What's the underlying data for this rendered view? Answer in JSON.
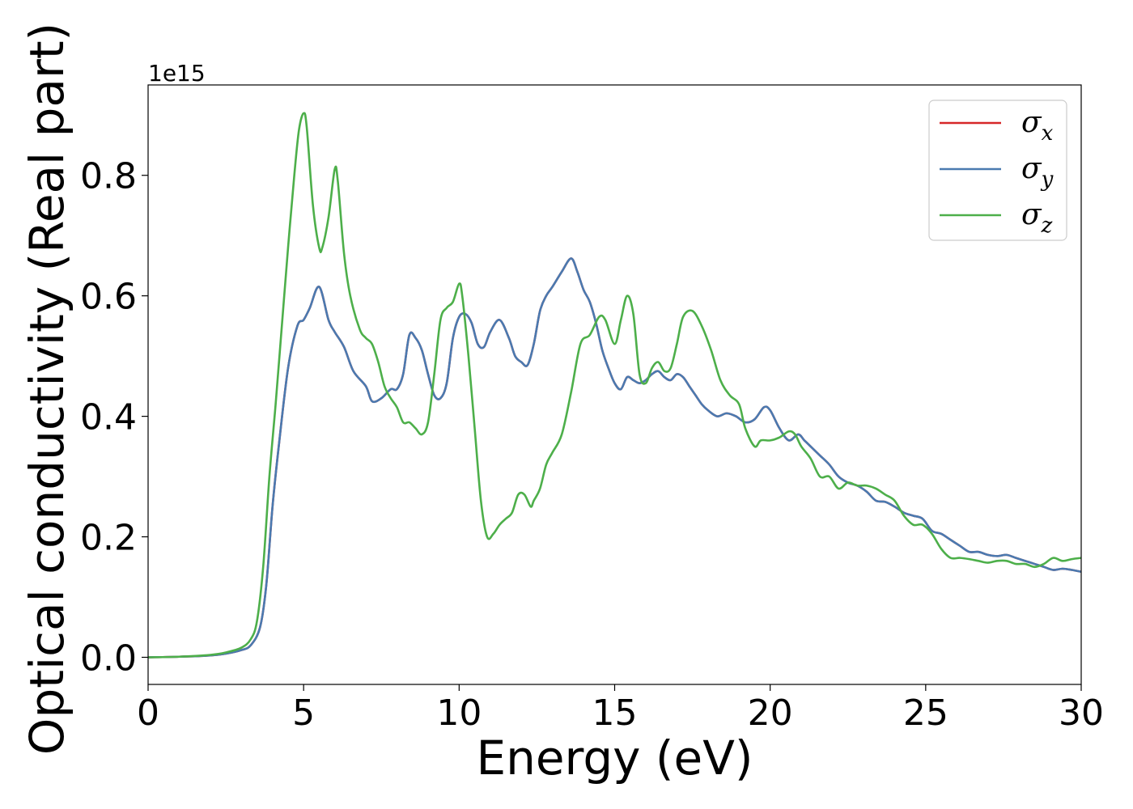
{
  "chart_data": {
    "type": "line",
    "xlabel": "Energy (eV)",
    "ylabel": "Optical conductivity (Real part)",
    "y_offset_label": "1e15",
    "xlim": [
      0,
      30
    ],
    "ylim": [
      -0.045,
      0.95
    ],
    "xticks": [
      0,
      5,
      10,
      15,
      20,
      25,
      30
    ],
    "xtick_labels": [
      "0",
      "5",
      "10",
      "15",
      "20",
      "25",
      "30"
    ],
    "yticks": [
      0.0,
      0.2,
      0.4,
      0.6,
      0.8
    ],
    "ytick_labels": [
      "0.0",
      "0.2",
      "0.4",
      "0.6",
      "0.8"
    ],
    "grid": false,
    "legend_position": "top-right",
    "series": [
      {
        "name": "σx",
        "symbol": "σ",
        "subscript": "x",
        "color": "#d62728",
        "x": [
          0,
          1,
          2,
          2.5,
          3,
          3.3,
          3.6,
          3.8,
          4.0,
          4.2,
          4.5,
          4.8,
          5.0,
          5.2,
          5.5,
          5.8,
          6.0,
          6.3,
          6.6,
          7.0,
          7.2,
          7.5,
          7.8,
          8.0,
          8.2,
          8.4,
          8.6,
          8.8,
          9.0,
          9.2,
          9.4,
          9.6,
          9.8,
          10.0,
          10.2,
          10.4,
          10.6,
          10.8,
          11.0,
          11.3,
          11.6,
          11.8,
          12.0,
          12.2,
          12.4,
          12.6,
          12.8,
          13.0,
          13.3,
          13.6,
          13.8,
          14.0,
          14.2,
          14.4,
          14.6,
          14.8,
          15.0,
          15.2,
          15.4,
          15.6,
          15.8,
          16.0,
          16.2,
          16.4,
          16.6,
          16.8,
          17.0,
          17.2,
          17.4,
          17.6,
          17.8,
          18.0,
          18.3,
          18.6,
          18.9,
          19.2,
          19.5,
          19.8,
          20.0,
          20.3,
          20.6,
          20.9,
          21.1,
          21.3,
          21.6,
          21.9,
          22.2,
          22.5,
          22.8,
          23.1,
          23.4,
          23.7,
          24.0,
          24.3,
          24.6,
          24.9,
          25.2,
          25.5,
          25.8,
          26.1,
          26.4,
          26.7,
          27.0,
          27.3,
          27.6,
          27.9,
          28.2,
          28.5,
          28.8,
          29.1,
          29.4,
          29.7,
          30.0
        ],
        "values": [
          0.0,
          0.001,
          0.003,
          0.006,
          0.012,
          0.02,
          0.05,
          0.12,
          0.25,
          0.35,
          0.48,
          0.55,
          0.56,
          0.58,
          0.615,
          0.56,
          0.54,
          0.515,
          0.475,
          0.45,
          0.425,
          0.43,
          0.445,
          0.445,
          0.47,
          0.535,
          0.53,
          0.51,
          0.47,
          0.435,
          0.43,
          0.455,
          0.53,
          0.565,
          0.57,
          0.555,
          0.52,
          0.515,
          0.54,
          0.56,
          0.53,
          0.5,
          0.49,
          0.485,
          0.52,
          0.575,
          0.6,
          0.615,
          0.64,
          0.662,
          0.64,
          0.61,
          0.59,
          0.555,
          0.51,
          0.48,
          0.455,
          0.445,
          0.465,
          0.46,
          0.455,
          0.46,
          0.47,
          0.475,
          0.465,
          0.46,
          0.47,
          0.465,
          0.45,
          0.435,
          0.42,
          0.41,
          0.4,
          0.405,
          0.4,
          0.39,
          0.395,
          0.415,
          0.41,
          0.38,
          0.36,
          0.37,
          0.36,
          0.35,
          0.335,
          0.32,
          0.3,
          0.29,
          0.285,
          0.275,
          0.26,
          0.258,
          0.25,
          0.24,
          0.235,
          0.23,
          0.21,
          0.205,
          0.195,
          0.185,
          0.175,
          0.175,
          0.17,
          0.168,
          0.17,
          0.165,
          0.16,
          0.155,
          0.15,
          0.145,
          0.147,
          0.145,
          0.142
        ]
      },
      {
        "name": "σy",
        "symbol": "σ",
        "subscript": "y",
        "color": "#4a7ab0",
        "x": [
          0,
          1,
          2,
          2.5,
          3,
          3.3,
          3.6,
          3.8,
          4.0,
          4.2,
          4.5,
          4.8,
          5.0,
          5.2,
          5.5,
          5.8,
          6.0,
          6.3,
          6.6,
          7.0,
          7.2,
          7.5,
          7.8,
          8.0,
          8.2,
          8.4,
          8.6,
          8.8,
          9.0,
          9.2,
          9.4,
          9.6,
          9.8,
          10.0,
          10.2,
          10.4,
          10.6,
          10.8,
          11.0,
          11.3,
          11.6,
          11.8,
          12.0,
          12.2,
          12.4,
          12.6,
          12.8,
          13.0,
          13.3,
          13.6,
          13.8,
          14.0,
          14.2,
          14.4,
          14.6,
          14.8,
          15.0,
          15.2,
          15.4,
          15.6,
          15.8,
          16.0,
          16.2,
          16.4,
          16.6,
          16.8,
          17.0,
          17.2,
          17.4,
          17.6,
          17.8,
          18.0,
          18.3,
          18.6,
          18.9,
          19.2,
          19.5,
          19.8,
          20.0,
          20.3,
          20.6,
          20.9,
          21.1,
          21.3,
          21.6,
          21.9,
          22.2,
          22.5,
          22.8,
          23.1,
          23.4,
          23.7,
          24.0,
          24.3,
          24.6,
          24.9,
          25.2,
          25.5,
          25.8,
          26.1,
          26.4,
          26.7,
          27.0,
          27.3,
          27.6,
          27.9,
          28.2,
          28.5,
          28.8,
          29.1,
          29.4,
          29.7,
          30.0
        ],
        "values": [
          0.0,
          0.001,
          0.003,
          0.006,
          0.012,
          0.02,
          0.05,
          0.12,
          0.25,
          0.35,
          0.48,
          0.55,
          0.56,
          0.58,
          0.615,
          0.56,
          0.54,
          0.515,
          0.475,
          0.45,
          0.425,
          0.43,
          0.445,
          0.445,
          0.47,
          0.535,
          0.53,
          0.51,
          0.47,
          0.435,
          0.43,
          0.455,
          0.53,
          0.565,
          0.57,
          0.555,
          0.52,
          0.515,
          0.54,
          0.56,
          0.53,
          0.5,
          0.49,
          0.485,
          0.52,
          0.575,
          0.6,
          0.615,
          0.64,
          0.662,
          0.64,
          0.61,
          0.59,
          0.555,
          0.51,
          0.48,
          0.455,
          0.445,
          0.465,
          0.46,
          0.455,
          0.46,
          0.47,
          0.475,
          0.465,
          0.46,
          0.47,
          0.465,
          0.45,
          0.435,
          0.42,
          0.41,
          0.4,
          0.405,
          0.4,
          0.39,
          0.395,
          0.415,
          0.41,
          0.38,
          0.36,
          0.37,
          0.36,
          0.35,
          0.335,
          0.32,
          0.3,
          0.29,
          0.285,
          0.275,
          0.26,
          0.258,
          0.25,
          0.24,
          0.235,
          0.23,
          0.21,
          0.205,
          0.195,
          0.185,
          0.175,
          0.175,
          0.17,
          0.168,
          0.17,
          0.165,
          0.16,
          0.155,
          0.15,
          0.145,
          0.147,
          0.145,
          0.142
        ]
      },
      {
        "name": "σz",
        "symbol": "σ",
        "subscript": "z",
        "color": "#4daf4a",
        "x": [
          0,
          1,
          2,
          2.5,
          3,
          3.3,
          3.5,
          3.7,
          3.9,
          4.1,
          4.3,
          4.5,
          4.7,
          4.85,
          5.0,
          5.1,
          5.3,
          5.5,
          5.6,
          5.8,
          6.0,
          6.1,
          6.3,
          6.5,
          6.8,
          7.0,
          7.2,
          7.4,
          7.6,
          7.8,
          8.0,
          8.2,
          8.4,
          8.6,
          8.8,
          9.0,
          9.2,
          9.4,
          9.6,
          9.8,
          10.0,
          10.1,
          10.3,
          10.5,
          10.7,
          10.9,
          11.1,
          11.3,
          11.5,
          11.7,
          11.9,
          12.1,
          12.3,
          12.4,
          12.6,
          12.8,
          13.0,
          13.3,
          13.6,
          13.9,
          14.2,
          14.5,
          14.7,
          15.0,
          15.2,
          15.4,
          15.6,
          15.8,
          16.0,
          16.2,
          16.4,
          16.6,
          16.8,
          17.0,
          17.2,
          17.5,
          17.8,
          18.1,
          18.4,
          18.7,
          19.0,
          19.2,
          19.5,
          19.7,
          20.0,
          20.3,
          20.6,
          20.8,
          21.0,
          21.3,
          21.6,
          21.9,
          22.2,
          22.5,
          22.8,
          23.1,
          23.4,
          23.7,
          24.0,
          24.3,
          24.6,
          24.9,
          25.2,
          25.5,
          25.8,
          26.1,
          26.4,
          26.7,
          27.0,
          27.3,
          27.6,
          27.9,
          28.2,
          28.5,
          28.8,
          29.1,
          29.4,
          29.7,
          30.0
        ],
        "values": [
          0.0,
          0.001,
          0.004,
          0.008,
          0.016,
          0.03,
          0.06,
          0.15,
          0.3,
          0.42,
          0.55,
          0.68,
          0.8,
          0.875,
          0.903,
          0.88,
          0.75,
          0.68,
          0.68,
          0.73,
          0.81,
          0.79,
          0.67,
          0.6,
          0.545,
          0.53,
          0.52,
          0.49,
          0.45,
          0.43,
          0.415,
          0.39,
          0.39,
          0.38,
          0.37,
          0.39,
          0.47,
          0.56,
          0.58,
          0.59,
          0.62,
          0.6,
          0.5,
          0.38,
          0.26,
          0.2,
          0.205,
          0.22,
          0.23,
          0.24,
          0.27,
          0.27,
          0.25,
          0.26,
          0.28,
          0.32,
          0.34,
          0.37,
          0.44,
          0.52,
          0.535,
          0.565,
          0.56,
          0.52,
          0.56,
          0.6,
          0.57,
          0.47,
          0.455,
          0.48,
          0.49,
          0.475,
          0.48,
          0.52,
          0.565,
          0.575,
          0.55,
          0.51,
          0.46,
          0.435,
          0.42,
          0.38,
          0.35,
          0.36,
          0.36,
          0.365,
          0.375,
          0.37,
          0.35,
          0.33,
          0.3,
          0.3,
          0.28,
          0.29,
          0.285,
          0.285,
          0.28,
          0.27,
          0.26,
          0.235,
          0.22,
          0.22,
          0.205,
          0.18,
          0.165,
          0.165,
          0.163,
          0.16,
          0.157,
          0.16,
          0.16,
          0.155,
          0.155,
          0.15,
          0.155,
          0.165,
          0.16,
          0.163,
          0.165
        ]
      }
    ]
  }
}
